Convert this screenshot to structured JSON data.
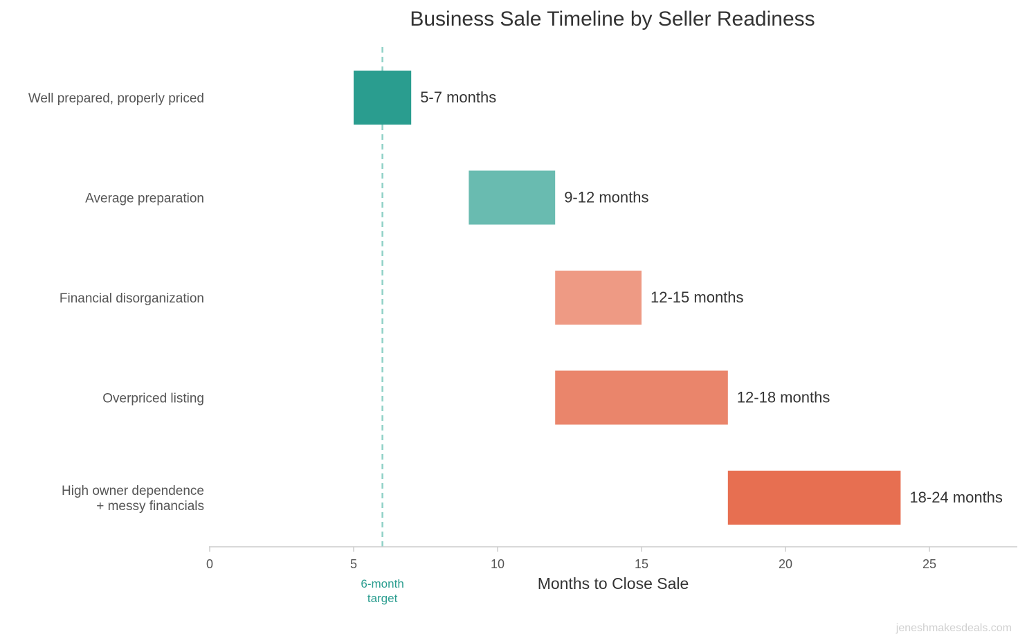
{
  "chart_data": {
    "type": "bar",
    "orientation": "horizontal",
    "title": "Business Sale Timeline by Seller Readiness",
    "xlabel": "Months to Close Sale",
    "ylabel": "",
    "xlim": [
      0,
      28
    ],
    "xticks": [
      0,
      5,
      10,
      15,
      20,
      25
    ],
    "grid": false,
    "categories": [
      [
        "Well prepared, properly priced"
      ],
      [
        "Average preparation"
      ],
      [
        "Financial disorganization"
      ],
      [
        "Overpriced listing"
      ],
      [
        "High owner dependence",
        "+ messy financials"
      ]
    ],
    "ranges": [
      {
        "start": 5,
        "end": 7,
        "label": "5-7 months",
        "color": "#2a9d8f"
      },
      {
        "start": 9,
        "end": 12,
        "label": "9-12 months",
        "color": "#69bbb0"
      },
      {
        "start": 12,
        "end": 15,
        "label": "12-15 months",
        "color": "#ee9a84"
      },
      {
        "start": 12,
        "end": 18,
        "label": "12-18 months",
        "color": "#ea856b"
      },
      {
        "start": 18,
        "end": 24,
        "label": "18-24 months",
        "color": "#e76f51"
      }
    ],
    "reference_line": {
      "x": 6,
      "label": [
        "6-month",
        "target"
      ],
      "color": "#8fd1c7"
    }
  },
  "watermark": "jeneshmakesdeals.com"
}
